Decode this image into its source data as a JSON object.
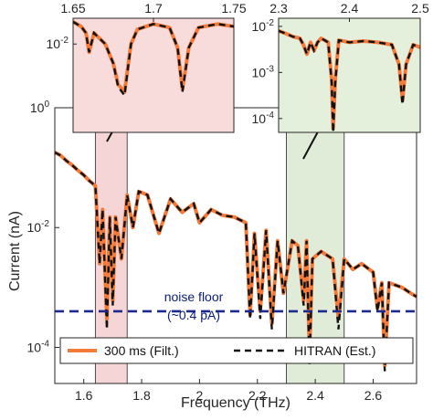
{
  "chart_data": [
    {
      "type": "line",
      "xlabel": "Frequency (THz)",
      "ylabel": "Current (nA)",
      "xlim": [
        1.5,
        2.75
      ],
      "ylim": [
        2.5e-05,
        1
      ],
      "yscale": "log",
      "x_ticks": [
        "1.6",
        "1.8",
        "2",
        "2.2",
        "2.4",
        "2.6"
      ],
      "y_ticks": [
        {
          "base": "10",
          "exp": "-4"
        },
        {
          "base": "10",
          "exp": "-2"
        },
        {
          "base": "10",
          "exp": "0"
        }
      ],
      "grid": false,
      "legend_position": "bottom",
      "series": [
        {
          "name": "300 ms (Filt.)",
          "color": "#f47a3a",
          "style": "solid",
          "points": [
            [
              1.5,
              0.18
            ],
            [
              1.52,
              0.16
            ],
            [
              1.54,
              0.13
            ],
            [
              1.56,
              0.11
            ],
            [
              1.58,
              0.09
            ],
            [
              1.6,
              0.075
            ],
            [
              1.62,
              0.06
            ],
            [
              1.64,
              0.05
            ],
            [
              1.655,
              0.0025
            ],
            [
              1.665,
              0.02
            ],
            [
              1.68,
              0.0003
            ],
            [
              1.69,
              0.015
            ],
            [
              1.7,
              0.0006
            ],
            [
              1.71,
              0.015
            ],
            [
              1.73,
              0.003
            ],
            [
              1.75,
              0.035
            ],
            [
              1.77,
              0.01
            ],
            [
              1.79,
              0.04
            ],
            [
              1.82,
              0.035
            ],
            [
              1.86,
              0.008
            ],
            [
              1.9,
              0.03
            ],
            [
              1.94,
              0.018
            ],
            [
              1.98,
              0.025
            ],
            [
              2.0,
              0.012
            ],
            [
              2.04,
              0.02
            ],
            [
              2.08,
              0.016
            ],
            [
              2.12,
              0.015
            ],
            [
              2.16,
              0.012
            ],
            [
              2.175,
              0.00035
            ],
            [
              2.19,
              0.008
            ],
            [
              2.21,
              0.0004
            ],
            [
              2.23,
              0.009
            ],
            [
              2.25,
              0.00025
            ],
            [
              2.27,
              0.006
            ],
            [
              2.29,
              0.0008
            ],
            [
              2.32,
              0.006
            ],
            [
              2.34,
              0.005
            ],
            [
              2.36,
              0.0006
            ],
            [
              2.37,
              0.006
            ],
            [
              2.38,
              7.5e-05
            ],
            [
              2.39,
              0.003
            ],
            [
              2.42,
              0.004
            ],
            [
              2.46,
              0.003
            ],
            [
              2.48,
              0.0003
            ],
            [
              2.5,
              0.003
            ],
            [
              2.53,
              0.002
            ],
            [
              2.56,
              0.0025
            ],
            [
              2.6,
              0.0018
            ],
            [
              2.615,
              0.00045
            ],
            [
              2.63,
              0.0012
            ],
            [
              2.64,
              5e-05
            ],
            [
              2.655,
              0.0012
            ],
            [
              2.7,
              0.001
            ],
            [
              2.73,
              0.0008
            ],
            [
              2.75,
              0.0007
            ]
          ]
        },
        {
          "name": "HITRAN (Est.)",
          "color": "#111111",
          "style": "dashed",
          "points": [
            [
              1.5,
              0.18
            ],
            [
              1.52,
              0.16
            ],
            [
              1.54,
              0.13
            ],
            [
              1.56,
              0.11
            ],
            [
              1.58,
              0.09
            ],
            [
              1.6,
              0.075
            ],
            [
              1.62,
              0.06
            ],
            [
              1.64,
              0.05
            ],
            [
              1.655,
              0.0025
            ],
            [
              1.665,
              0.02
            ],
            [
              1.68,
              0.0002
            ],
            [
              1.69,
              0.015
            ],
            [
              1.7,
              0.0005
            ],
            [
              1.71,
              0.015
            ],
            [
              1.73,
              0.003
            ],
            [
              1.75,
              0.035
            ],
            [
              1.77,
              0.01
            ],
            [
              1.79,
              0.04
            ],
            [
              1.82,
              0.035
            ],
            [
              1.86,
              0.008
            ],
            [
              1.9,
              0.03
            ],
            [
              1.94,
              0.018
            ],
            [
              1.98,
              0.025
            ],
            [
              2.0,
              0.012
            ],
            [
              2.04,
              0.02
            ],
            [
              2.08,
              0.016
            ],
            [
              2.12,
              0.015
            ],
            [
              2.16,
              0.012
            ],
            [
              2.175,
              0.0003
            ],
            [
              2.19,
              0.008
            ],
            [
              2.21,
              0.0003
            ],
            [
              2.23,
              0.009
            ],
            [
              2.25,
              0.0002
            ],
            [
              2.27,
              0.006
            ],
            [
              2.29,
              0.0008
            ],
            [
              2.32,
              0.006
            ],
            [
              2.34,
              0.005
            ],
            [
              2.36,
              0.0005
            ],
            [
              2.37,
              0.006
            ],
            [
              2.38,
              5e-05
            ],
            [
              2.39,
              0.003
            ],
            [
              2.42,
              0.004
            ],
            [
              2.46,
              0.003
            ],
            [
              2.48,
              0.0002
            ],
            [
              2.5,
              0.003
            ],
            [
              2.53,
              0.002
            ],
            [
              2.56,
              0.0025
            ],
            [
              2.6,
              0.0018
            ],
            [
              2.615,
              0.0004
            ],
            [
              2.63,
              0.0012
            ],
            [
              2.64,
              4e-05
            ],
            [
              2.655,
              0.0012
            ],
            [
              2.7,
              0.001
            ],
            [
              2.73,
              0.0008
            ],
            [
              2.75,
              0.0007
            ]
          ]
        }
      ],
      "shaded_regions": [
        {
          "x_range": [
            1.64,
            1.75
          ],
          "color": "#f5d5d5"
        },
        {
          "x_range": [
            2.3,
            2.5
          ],
          "color": "#e0ecd8"
        }
      ],
      "reference_lines": [
        {
          "y": 0.0004,
          "color": "#1b2a8c",
          "style": "dashed"
        }
      ],
      "annotations": [
        {
          "line1": "noise floor",
          "line2": "(~0.4 pA)"
        }
      ]
    },
    {
      "type": "line",
      "xlim": [
        1.65,
        1.75
      ],
      "ylim": [
        4e-05,
        0.05
      ],
      "yscale": "log",
      "x_ticks": [
        "1.65",
        "1.7",
        "1.75"
      ],
      "y_ticks": [
        {
          "base": "10",
          "exp": "-2"
        }
      ],
      "background": "#f8dcdc",
      "series": [
        {
          "name": "",
          "style": "solid",
          "color": "#f47a3a",
          "points": [
            [
              1.65,
              0.04
            ],
            [
              1.655,
              0.03
            ],
            [
              1.658,
              0.02
            ],
            [
              1.66,
              0.006
            ],
            [
              1.663,
              0.02
            ],
            [
              1.67,
              0.01
            ],
            [
              1.675,
              0.003
            ],
            [
              1.678,
              0.0008
            ],
            [
              1.682,
              0.0005
            ],
            [
              1.686,
              0.01
            ],
            [
              1.69,
              0.025
            ],
            [
              1.7,
              0.035
            ],
            [
              1.71,
              0.028
            ],
            [
              1.715,
              0.008
            ],
            [
              1.718,
              0.0006
            ],
            [
              1.722,
              0.008
            ],
            [
              1.728,
              0.028
            ],
            [
              1.74,
              0.035
            ],
            [
              1.75,
              0.03
            ]
          ]
        },
        {
          "name": "",
          "style": "dashed",
          "color": "#111111",
          "points": [
            [
              1.65,
              0.04
            ],
            [
              1.655,
              0.03
            ],
            [
              1.658,
              0.02
            ],
            [
              1.66,
              0.006
            ],
            [
              1.663,
              0.02
            ],
            [
              1.67,
              0.01
            ],
            [
              1.675,
              0.003
            ],
            [
              1.678,
              0.0007
            ],
            [
              1.682,
              0.0004
            ],
            [
              1.686,
              0.01
            ],
            [
              1.69,
              0.025
            ],
            [
              1.7,
              0.035
            ],
            [
              1.71,
              0.028
            ],
            [
              1.715,
              0.008
            ],
            [
              1.718,
              0.0005
            ],
            [
              1.722,
              0.008
            ],
            [
              1.728,
              0.028
            ],
            [
              1.74,
              0.035
            ],
            [
              1.75,
              0.03
            ]
          ]
        }
      ]
    },
    {
      "type": "line",
      "xlim": [
        2.3,
        2.5
      ],
      "ylim": [
        5e-05,
        0.015
      ],
      "yscale": "log",
      "x_ticks": [
        "2.3",
        "2.4",
        "2.5"
      ],
      "y_ticks": [
        {
          "base": "10",
          "exp": "-2"
        },
        {
          "base": "10",
          "exp": "-3"
        },
        {
          "base": "10",
          "exp": "-4"
        }
      ],
      "background": "#e4efdc",
      "series": [
        {
          "name": "",
          "style": "solid",
          "color": "#f47a3a",
          "points": [
            [
              2.3,
              0.008
            ],
            [
              2.31,
              0.007
            ],
            [
              2.32,
              0.006
            ],
            [
              2.33,
              0.0055
            ],
            [
              2.335,
              0.004
            ],
            [
              2.34,
              0.0025
            ],
            [
              2.345,
              0.0045
            ],
            [
              2.35,
              0.003
            ],
            [
              2.355,
              0.0045
            ],
            [
              2.36,
              0.0055
            ],
            [
              2.365,
              0.005
            ],
            [
              2.37,
              0.0045
            ],
            [
              2.375,
              0.0007
            ],
            [
              2.377,
              6e-05
            ],
            [
              2.38,
              0.0007
            ],
            [
              2.385,
              0.005
            ],
            [
              2.4,
              0.0045
            ],
            [
              2.42,
              0.0048
            ],
            [
              2.44,
              0.0045
            ],
            [
              2.46,
              0.004
            ],
            [
              2.47,
              0.0015
            ],
            [
              2.475,
              0.00025
            ],
            [
              2.48,
              0.0015
            ],
            [
              2.49,
              0.004
            ],
            [
              2.5,
              0.0035
            ]
          ]
        },
        {
          "name": "",
          "style": "dashed",
          "color": "#111111",
          "points": [
            [
              2.3,
              0.008
            ],
            [
              2.31,
              0.007
            ],
            [
              2.32,
              0.006
            ],
            [
              2.33,
              0.0055
            ],
            [
              2.335,
              0.004
            ],
            [
              2.34,
              0.0025
            ],
            [
              2.345,
              0.0045
            ],
            [
              2.35,
              0.003
            ],
            [
              2.355,
              0.0045
            ],
            [
              2.36,
              0.0055
            ],
            [
              2.365,
              0.005
            ],
            [
              2.37,
              0.0045
            ],
            [
              2.375,
              0.0006
            ],
            [
              2.377,
              5e-05
            ],
            [
              2.38,
              0.0006
            ],
            [
              2.385,
              0.005
            ],
            [
              2.4,
              0.0045
            ],
            [
              2.42,
              0.0048
            ],
            [
              2.44,
              0.0045
            ],
            [
              2.46,
              0.004
            ],
            [
              2.47,
              0.0015
            ],
            [
              2.475,
              0.0002
            ],
            [
              2.48,
              0.0015
            ],
            [
              2.49,
              0.004
            ],
            [
              2.5,
              0.0035
            ]
          ]
        }
      ]
    }
  ]
}
